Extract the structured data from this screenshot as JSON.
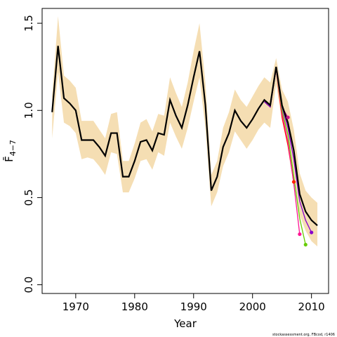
{
  "chart_data": {
    "type": "line",
    "xlabel": "Year",
    "ylabel": {
      "main": "F̄",
      "sub": "4−7"
    },
    "footer": "stockassessment.org, FBcod, r1406",
    "band_color": "#f5deb3",
    "x": [
      1966,
      1967,
      1968,
      1969,
      1970,
      1971,
      1972,
      1973,
      1974,
      1975,
      1976,
      1977,
      1978,
      1979,
      1980,
      1981,
      1982,
      1983,
      1984,
      1985,
      1986,
      1987,
      1988,
      1989,
      1990,
      1991,
      1992,
      1993,
      1994,
      1995,
      1996,
      1997,
      1998,
      1999,
      2000,
      2001,
      2002,
      2003,
      2004,
      2005,
      2006,
      2007,
      2008,
      2009,
      2010,
      2011
    ],
    "upper": [
      1.08,
      1.54,
      1.2,
      1.17,
      1.13,
      0.94,
      0.94,
      0.94,
      0.89,
      0.84,
      0.98,
      0.99,
      0.71,
      0.71,
      0.81,
      0.93,
      0.95,
      0.88,
      0.98,
      0.97,
      1.19,
      1.1,
      1.02,
      1.16,
      1.34,
      1.5,
      1.16,
      0.63,
      0.71,
      0.9,
      0.99,
      1.12,
      1.06,
      1.02,
      1.08,
      1.14,
      1.19,
      1.16,
      1.3,
      1.12,
      1.05,
      0.89,
      0.64,
      0.54,
      0.5,
      0.47
    ],
    "lower": [
      0.84,
      1.22,
      0.93,
      0.91,
      0.87,
      0.72,
      0.73,
      0.72,
      0.68,
      0.63,
      0.76,
      0.75,
      0.53,
      0.53,
      0.61,
      0.71,
      0.72,
      0.66,
      0.76,
      0.74,
      0.93,
      0.85,
      0.78,
      0.9,
      1.05,
      1.19,
      0.9,
      0.45,
      0.53,
      0.68,
      0.76,
      0.88,
      0.83,
      0.78,
      0.83,
      0.89,
      0.93,
      0.9,
      1.15,
      0.94,
      0.82,
      0.65,
      0.4,
      0.31,
      0.25,
      0.22
    ],
    "series": [
      {
        "color": "#000000",
        "x": [
          1966,
          1967,
          1968,
          1969,
          1970,
          1971,
          1972,
          1973,
          1974,
          1975,
          1976,
          1977,
          1978,
          1979,
          1980,
          1981,
          1982,
          1983,
          1984,
          1985,
          1986,
          1987,
          1988,
          1989,
          1990,
          1991,
          1992,
          1993,
          1994,
          1995,
          1996,
          1997,
          1998,
          1999,
          2000,
          2001,
          2002,
          2003,
          2004,
          2005,
          2006,
          2007,
          2008,
          2009,
          2010,
          2011
        ],
        "values": [
          0.99,
          1.37,
          1.07,
          1.04,
          1.0,
          0.83,
          0.83,
          0.83,
          0.79,
          0.74,
          0.87,
          0.87,
          0.62,
          0.62,
          0.71,
          0.82,
          0.83,
          0.77,
          0.87,
          0.86,
          1.06,
          0.97,
          0.9,
          1.03,
          1.19,
          1.34,
          1.03,
          0.54,
          0.62,
          0.79,
          0.87,
          1.0,
          0.94,
          0.9,
          0.95,
          1.01,
          1.06,
          1.03,
          1.25,
          1.03,
          0.93,
          0.77,
          0.52,
          0.42,
          0.37,
          0.34
        ]
      },
      {
        "color": "#c71585",
        "x": [
          2002,
          2003,
          2004,
          2005,
          2006
        ],
        "values": [
          1.05,
          1.02,
          1.24,
          1.02,
          0.96
        ]
      },
      {
        "color": "#ff2000",
        "x": [
          2002,
          2003,
          2004,
          2005,
          2006,
          2007
        ],
        "values": [
          1.05,
          1.02,
          1.24,
          0.96,
          0.8,
          0.59
        ]
      },
      {
        "color": "#ff1493",
        "x": [
          2002,
          2003,
          2004,
          2005,
          2006,
          2007,
          2008
        ],
        "values": [
          1.05,
          1.02,
          1.24,
          0.98,
          0.82,
          0.58,
          0.29
        ]
      },
      {
        "color": "#66cc00",
        "x": [
          2002,
          2003,
          2004,
          2005,
          2006,
          2007,
          2008,
          2009
        ],
        "values": [
          1.05,
          1.02,
          1.24,
          1.0,
          0.86,
          0.62,
          0.38,
          0.23
        ]
      },
      {
        "color": "#8800cc",
        "x": [
          2002,
          2003,
          2004,
          2005,
          2006,
          2007,
          2008,
          2009,
          2010
        ],
        "values": [
          1.05,
          1.02,
          1.24,
          1.02,
          0.9,
          0.72,
          0.48,
          0.37,
          0.3
        ]
      }
    ],
    "xlim": [
      1964.3,
      2012.9
    ],
    "ylim": [
      -0.05,
      1.585
    ],
    "xticks": [
      1970,
      1980,
      1990,
      2000,
      2010
    ],
    "yticks": [
      {
        "value": 0,
        "label": "0.0"
      },
      0.5,
      {
        "value": 1,
        "label": "1.0"
      },
      1.5
    ]
  }
}
